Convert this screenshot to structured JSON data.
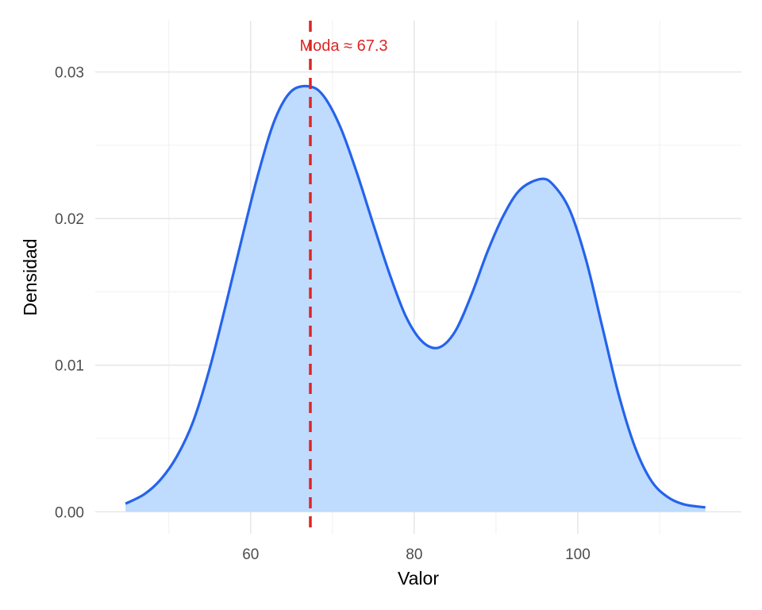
{
  "chart_data": {
    "type": "area",
    "title": "",
    "xlabel": "Valor",
    "ylabel": "Densidad",
    "xlim": [
      41,
      120
    ],
    "ylim": [
      -0.0015,
      0.0335
    ],
    "x_ticks": [
      60,
      80,
      100
    ],
    "x_tick_labels": [
      "60",
      "80",
      "100"
    ],
    "x_minor_ticks": [
      50,
      70,
      90,
      110
    ],
    "y_ticks": [
      0,
      0.01,
      0.02,
      0.03
    ],
    "y_tick_labels": [
      "0.00",
      "0.01",
      "0.02",
      "0.03"
    ],
    "y_minor_ticks": [
      0.005,
      0.015,
      0.025
    ],
    "grid": true,
    "series": [
      {
        "x": [
          44.7,
          47,
          49,
          51,
          53,
          55,
          57,
          59,
          61,
          63,
          65,
          67.3,
          69,
          71,
          73,
          75,
          77,
          79,
          81,
          83,
          85,
          87,
          89,
          91,
          93,
          95.5,
          97,
          99,
          101,
          103,
          105,
          107,
          109,
          111,
          113,
          115.6
        ],
        "y": [
          0.00055,
          0.0012,
          0.0022,
          0.0038,
          0.0062,
          0.0098,
          0.0142,
          0.0188,
          0.0232,
          0.0268,
          0.0287,
          0.029,
          0.0283,
          0.0262,
          0.0231,
          0.0196,
          0.0162,
          0.0133,
          0.0116,
          0.0112,
          0.0123,
          0.0148,
          0.0178,
          0.0203,
          0.022,
          0.0227,
          0.0223,
          0.0206,
          0.0172,
          0.0126,
          0.008,
          0.0044,
          0.0021,
          0.001,
          0.0005,
          0.0003
        ]
      }
    ],
    "fill_color": "#bfdbfe",
    "line_color": "#2563eb",
    "mode_x": 67.3,
    "mode_line_color": "#dc2626",
    "annotation": "Moda ≈ 67.3"
  }
}
